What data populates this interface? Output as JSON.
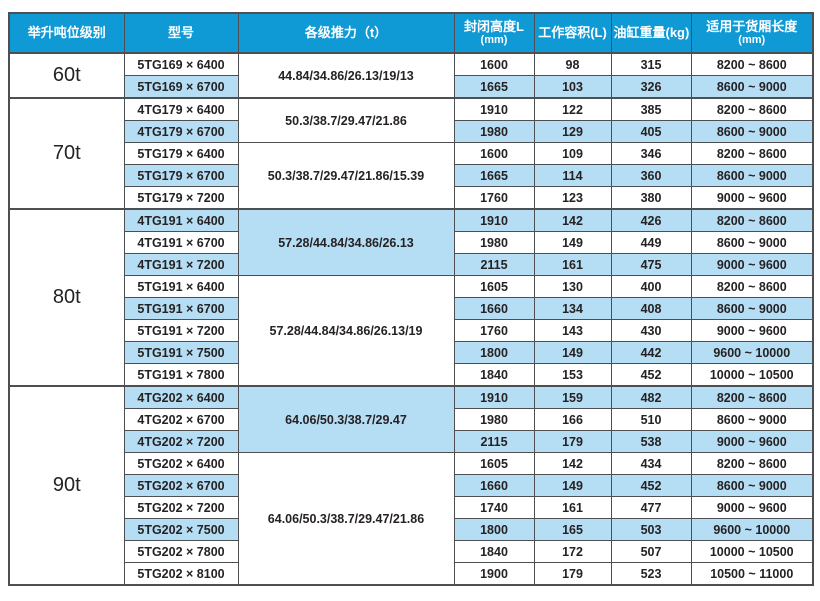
{
  "colors": {
    "header_bg": "#0f9ad6",
    "row_highlight_blue": "#b5ddf4",
    "border": "#4d4f52",
    "header_text": "#ffffff",
    "body_text": "#262223"
  },
  "table": {
    "columns": [
      {
        "label": "举升吨位级别",
        "sub": ""
      },
      {
        "label": "型号",
        "sub": ""
      },
      {
        "label": "各级推力（t）",
        "sub": ""
      },
      {
        "label": "封闭高度L",
        "sub": "(mm)"
      },
      {
        "label": "工作容积(L)",
        "sub": ""
      },
      {
        "label": "油缸重量(kg)",
        "sub": ""
      },
      {
        "label": "适用于货厢长度",
        "sub": "(mm)"
      }
    ],
    "sections": [
      {
        "tonnage": "60t",
        "groups": [
          {
            "thrust": "44.84/34.86/26.13/19/13",
            "thrust_shaded": false,
            "rows": [
              {
                "model": "5TG169 × 6400",
                "closed_height": "1600",
                "working_volume": "98",
                "cylinder_weight": "315",
                "cargo_length": "8200 ~ 8600",
                "shaded": false
              },
              {
                "model": "5TG169 × 6700",
                "closed_height": "1665",
                "working_volume": "103",
                "cylinder_weight": "326",
                "cargo_length": "8600 ~ 9000",
                "shaded": true
              }
            ]
          }
        ]
      },
      {
        "tonnage": "70t",
        "groups": [
          {
            "thrust": "50.3/38.7/29.47/21.86",
            "thrust_shaded": false,
            "rows": [
              {
                "model": "4TG179 × 6400",
                "closed_height": "1910",
                "working_volume": "122",
                "cylinder_weight": "385",
                "cargo_length": "8200 ~ 8600",
                "shaded": false
              },
              {
                "model": "4TG179 × 6700",
                "closed_height": "1980",
                "working_volume": "129",
                "cylinder_weight": "405",
                "cargo_length": "8600 ~ 9000",
                "shaded": true
              }
            ]
          },
          {
            "thrust": "50.3/38.7/29.47/21.86/15.39",
            "thrust_shaded": false,
            "rows": [
              {
                "model": "5TG179 × 6400",
                "closed_height": "1600",
                "working_volume": "109",
                "cylinder_weight": "346",
                "cargo_length": "8200 ~ 8600",
                "shaded": false
              },
              {
                "model": "5TG179 × 6700",
                "closed_height": "1665",
                "working_volume": "114",
                "cylinder_weight": "360",
                "cargo_length": "8600 ~ 9000",
                "shaded": true
              },
              {
                "model": "5TG179 × 7200",
                "closed_height": "1760",
                "working_volume": "123",
                "cylinder_weight": "380",
                "cargo_length": "9000 ~ 9600",
                "shaded": false
              }
            ]
          }
        ]
      },
      {
        "tonnage": "80t",
        "groups": [
          {
            "thrust": "57.28/44.84/34.86/26.13",
            "thrust_shaded": true,
            "rows": [
              {
                "model": "4TG191 × 6400",
                "closed_height": "1910",
                "working_volume": "142",
                "cylinder_weight": "426",
                "cargo_length": "8200 ~ 8600",
                "shaded": true
              },
              {
                "model": "4TG191 × 6700",
                "closed_height": "1980",
                "working_volume": "149",
                "cylinder_weight": "449",
                "cargo_length": "8600 ~ 9000",
                "shaded": false
              },
              {
                "model": "4TG191 × 7200",
                "closed_height": "2115",
                "working_volume": "161",
                "cylinder_weight": "475",
                "cargo_length": "9000 ~ 9600",
                "shaded": true
              }
            ]
          },
          {
            "thrust": "57.28/44.84/34.86/26.13/19",
            "thrust_shaded": false,
            "rows": [
              {
                "model": "5TG191 × 6400",
                "closed_height": "1605",
                "working_volume": "130",
                "cylinder_weight": "400",
                "cargo_length": "8200 ~ 8600",
                "shaded": false
              },
              {
                "model": "5TG191 × 6700",
                "closed_height": "1660",
                "working_volume": "134",
                "cylinder_weight": "408",
                "cargo_length": "8600 ~ 9000",
                "shaded": true
              },
              {
                "model": "5TG191 × 7200",
                "closed_height": "1760",
                "working_volume": "143",
                "cylinder_weight": "430",
                "cargo_length": "9000 ~ 9600",
                "shaded": false
              },
              {
                "model": "5TG191 × 7500",
                "closed_height": "1800",
                "working_volume": "149",
                "cylinder_weight": "442",
                "cargo_length": "9600 ~ 10000",
                "shaded": true
              },
              {
                "model": "5TG191 × 7800",
                "closed_height": "1840",
                "working_volume": "153",
                "cylinder_weight": "452",
                "cargo_length": "10000 ~ 10500",
                "shaded": false
              }
            ]
          }
        ]
      },
      {
        "tonnage": "90t",
        "groups": [
          {
            "thrust": "64.06/50.3/38.7/29.47",
            "thrust_shaded": true,
            "rows": [
              {
                "model": "4TG202 × 6400",
                "closed_height": "1910",
                "working_volume": "159",
                "cylinder_weight": "482",
                "cargo_length": "8200 ~ 8600",
                "shaded": true
              },
              {
                "model": "4TG202 × 6700",
                "closed_height": "1980",
                "working_volume": "166",
                "cylinder_weight": "510",
                "cargo_length": "8600 ~ 9000",
                "shaded": false
              },
              {
                "model": "4TG202 × 7200",
                "closed_height": "2115",
                "working_volume": "179",
                "cylinder_weight": "538",
                "cargo_length": "9000 ~ 9600",
                "shaded": true
              }
            ]
          },
          {
            "thrust": "64.06/50.3/38.7/29.47/21.86",
            "thrust_shaded": false,
            "rows": [
              {
                "model": "5TG202 × 6400",
                "closed_height": "1605",
                "working_volume": "142",
                "cylinder_weight": "434",
                "cargo_length": "8200 ~ 8600",
                "shaded": false
              },
              {
                "model": "5TG202 × 6700",
                "closed_height": "1660",
                "working_volume": "149",
                "cylinder_weight": "452",
                "cargo_length": "8600 ~ 9000",
                "shaded": true
              },
              {
                "model": "5TG202 × 7200",
                "closed_height": "1740",
                "working_volume": "161",
                "cylinder_weight": "477",
                "cargo_length": "9000 ~ 9600",
                "shaded": false
              },
              {
                "model": "5TG202 × 7500",
                "closed_height": "1800",
                "working_volume": "165",
                "cylinder_weight": "503",
                "cargo_length": "9600 ~ 10000",
                "shaded": true
              },
              {
                "model": "5TG202 × 7800",
                "closed_height": "1840",
                "working_volume": "172",
                "cylinder_weight": "507",
                "cargo_length": "10000 ~ 10500",
                "shaded": false
              },
              {
                "model": "5TG202 × 8100",
                "closed_height": "1900",
                "working_volume": "179",
                "cylinder_weight": "523",
                "cargo_length": "10500 ~ 11000",
                "shaded": false
              }
            ]
          }
        ]
      }
    ]
  }
}
